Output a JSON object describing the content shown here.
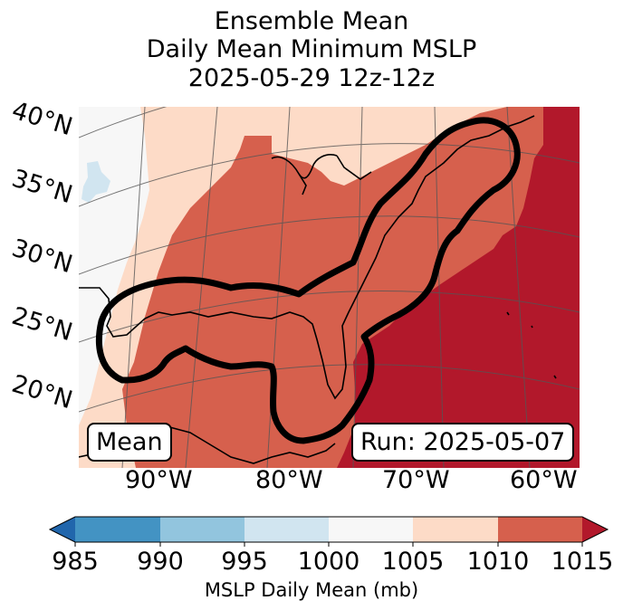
{
  "title": {
    "line1": "Ensemble Mean",
    "line2": "Daily Mean Minimum MSLP",
    "line3": "2025-05-29 12z-12z"
  },
  "map": {
    "lat_labels": [
      "40°N",
      "35°N",
      "30°N",
      "25°N",
      "20°N"
    ],
    "lon_labels": [
      "90°W",
      "80°W",
      "70°W",
      "60°W"
    ],
    "mean_label": "Mean",
    "run_label": "Run: 2025-05-07",
    "colors": {
      "land_outline": "#000000",
      "contour": "#000000",
      "grid": "#555555"
    }
  },
  "colorbar": {
    "ticks": [
      "985",
      "990",
      "995",
      "1000",
      "1005",
      "1010",
      "1015"
    ],
    "label": "MSLP Daily Mean (mb)",
    "colors": [
      "#2166ac",
      "#4393c3",
      "#92c5de",
      "#d1e5f0",
      "#f7f7f7",
      "#fddbc7",
      "#d6604d",
      "#b2182b"
    ]
  }
}
